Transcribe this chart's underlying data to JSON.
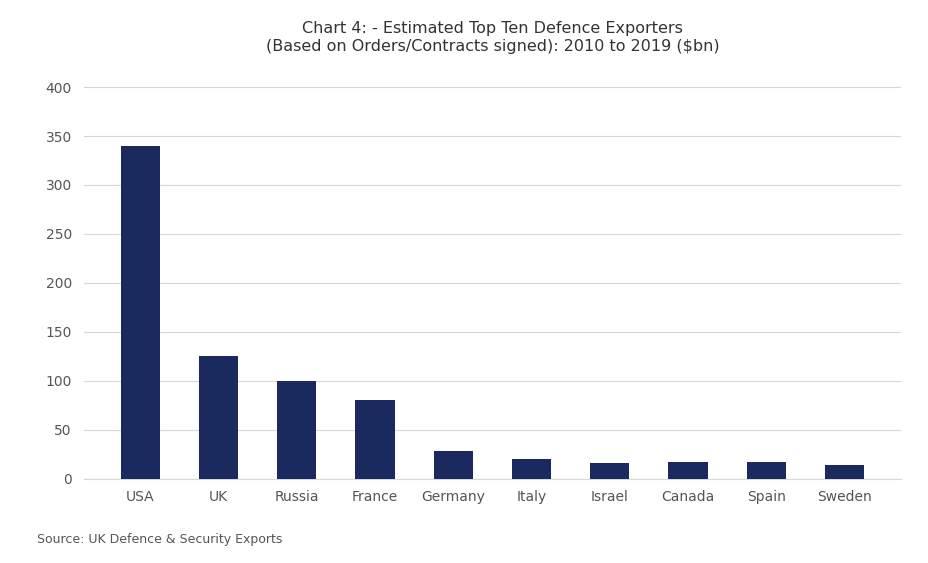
{
  "categories": [
    "USA",
    "UK",
    "Russia",
    "France",
    "Germany",
    "Italy",
    "Israel",
    "Canada",
    "Spain",
    "Sweden"
  ],
  "values": [
    340,
    125,
    100,
    80,
    28,
    20,
    16,
    17,
    17,
    14
  ],
  "bar_color": "#1a2a5e",
  "title_line1": "Chart 4: - Estimated Top Ten Defence Exporters",
  "title_line2": "(Based on Orders/Contracts signed): 2010 to 2019 ($bn)",
  "source_text": "Source: UK Defence & Security Exports",
  "ylim": [
    0,
    420
  ],
  "yticks": [
    0,
    50,
    100,
    150,
    200,
    250,
    300,
    350,
    400
  ],
  "plot_bg_color": "#ffffff",
  "fig_bg_color": "#ffffff",
  "grid_color": "#d8d8d8",
  "title_fontsize": 11.5,
  "tick_fontsize": 10,
  "source_fontsize": 9,
  "bar_width": 0.5
}
